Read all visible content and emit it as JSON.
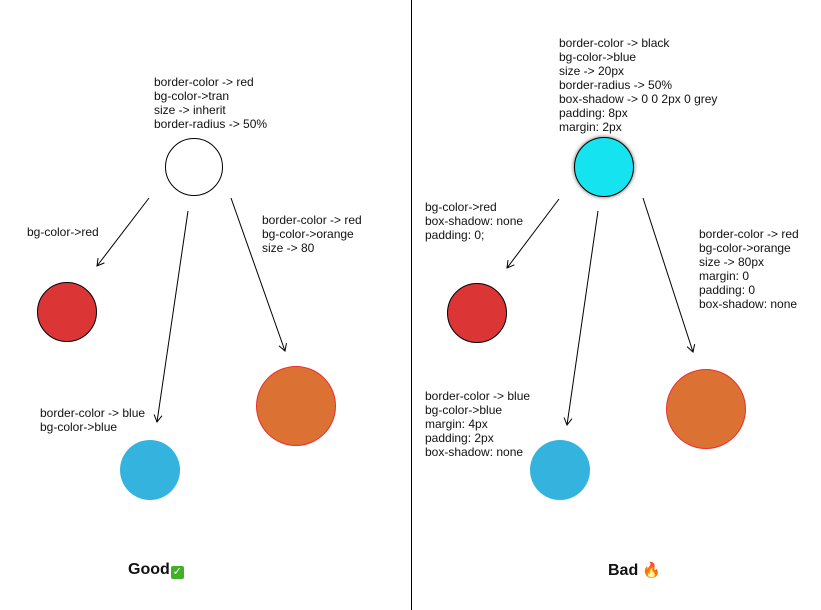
{
  "colors": {
    "red_fill": "#db3535",
    "blue_fill": "#33b3dd",
    "orange_fill": "#dc7134",
    "cyan_fill": "#15e3ef",
    "red_border": "#ee2c2c",
    "check_bg": "#43b02a",
    "fire": "#e0561c"
  },
  "good": {
    "root_note": [
      "border-color -> red",
      "bg-color->tran",
      "size -> inherit",
      "border-radius -> 50%"
    ],
    "left_note": [
      "bg-color->red"
    ],
    "middle_note": [
      "border-color -> blue",
      "bg-color->blue"
    ],
    "right_note": [
      "border-color -> red",
      "bg-color->orange",
      "size -> 80"
    ],
    "label": "Good",
    "badge_icon": "check-mark-icon",
    "badge_glyph": "✓"
  },
  "bad": {
    "root_note": [
      "border-color -> black",
      "bg-color->blue",
      "size -> 20px",
      "border-radius -> 50%",
      "box-shadow -> 0 0 2px 0 grey",
      "padding: 8px",
      "margin: 2px"
    ],
    "left_note": [
      "bg-color->red",
      "box-shadow: none",
      "padding: 0;"
    ],
    "middle_note": [
      "border-color -> blue",
      "bg-color->blue",
      "margin: 4px",
      "padding: 2px",
      "box-shadow: none"
    ],
    "right_note": [
      "border-color -> red",
      "bg-color->orange",
      "size -> 80px",
      "margin: 0",
      "padding: 0",
      "box-shadow: none"
    ],
    "label": "Bad",
    "badge_icon": "fire-icon",
    "badge_glyph": "🔥"
  }
}
